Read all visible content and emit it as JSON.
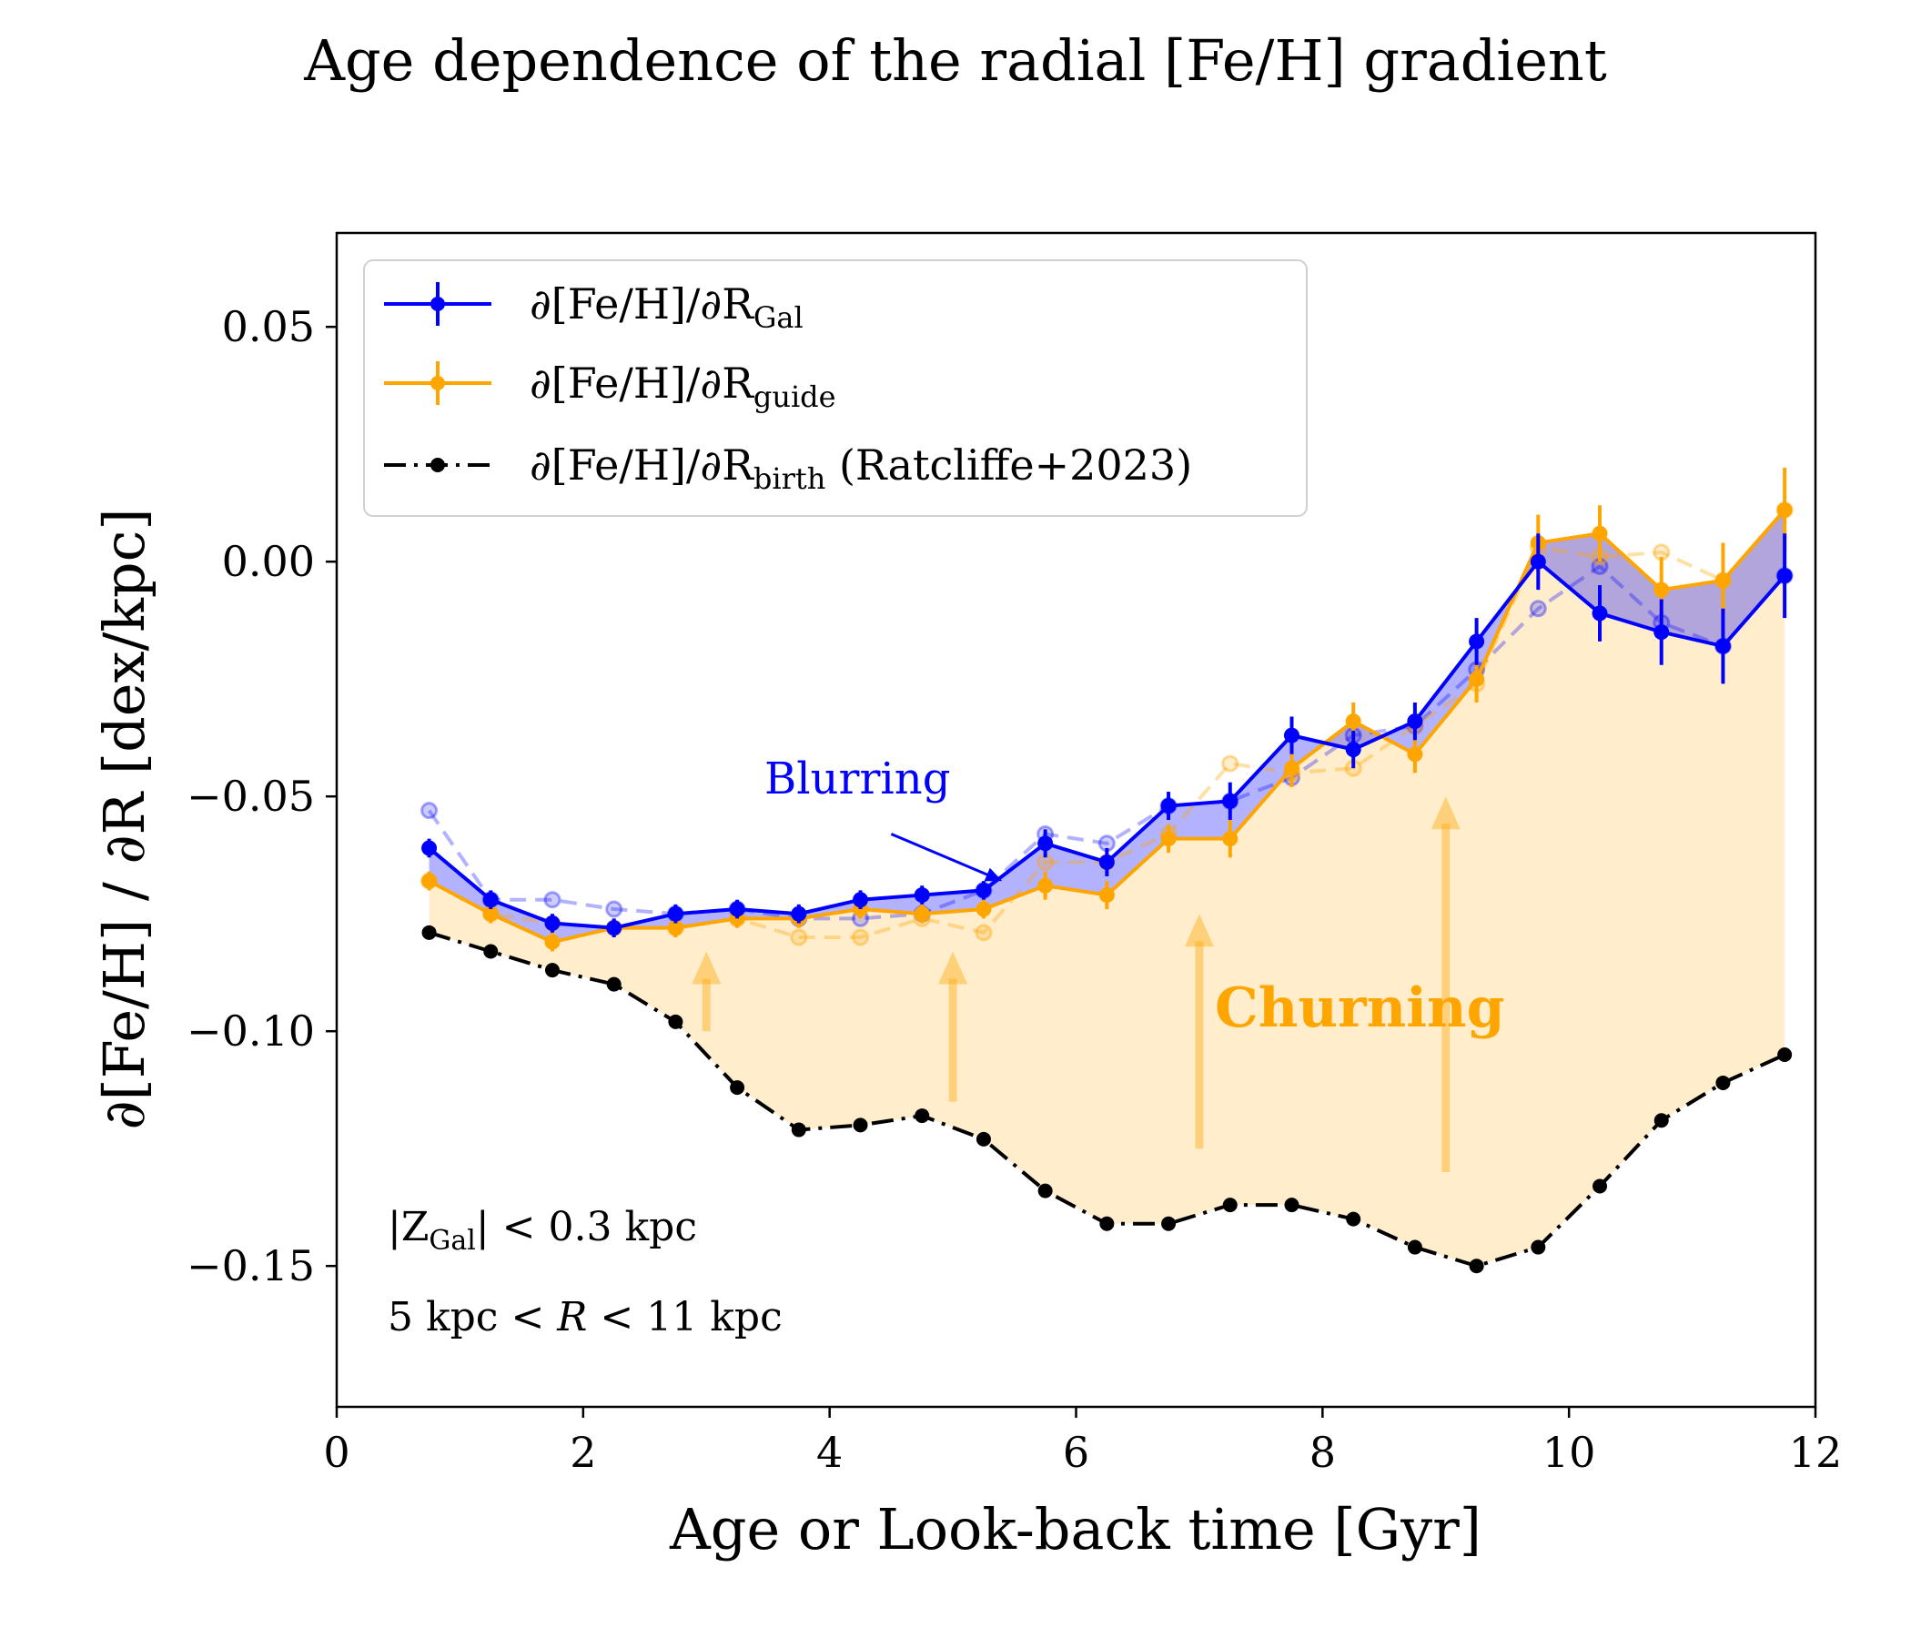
{
  "chart_data": {
    "type": "line",
    "title": "Age dependence of the radial [Fe/H] gradient",
    "xlabel": "Age or Look-back time [Gyr]",
    "ylabel": "∂[Fe/H] / ∂R [dex/kpc]",
    "xlim": [
      0,
      12
    ],
    "ylim": [
      -0.18,
      0.07
    ],
    "x_ticks": [
      0,
      2,
      4,
      6,
      8,
      10,
      12
    ],
    "x_tick_labels": [
      "0",
      "2",
      "4",
      "6",
      "8",
      "10",
      "12"
    ],
    "y_ticks": [
      0.05,
      0.0,
      -0.05,
      -0.1,
      -0.15
    ],
    "y_tick_labels": [
      "0.05",
      "0.00",
      "−0.05",
      "−0.10",
      "−0.15"
    ],
    "legend_position": "top-left",
    "x": [
      0.75,
      1.25,
      1.75,
      2.25,
      2.75,
      3.25,
      3.75,
      4.25,
      4.75,
      5.25,
      5.75,
      6.25,
      6.75,
      7.25,
      7.75,
      8.25,
      8.75,
      9.25,
      9.75,
      10.25,
      10.75,
      11.25,
      11.75
    ],
    "series": [
      {
        "name": "∂[Fe/H]/∂R_Gal",
        "legend_main": "∂[Fe/H]/∂R",
        "legend_sub": "Gal",
        "color": "#0000ff",
        "style": "solid",
        "values": [
          -0.061,
          -0.072,
          -0.077,
          -0.078,
          -0.075,
          -0.074,
          -0.075,
          -0.072,
          -0.071,
          -0.07,
          -0.06,
          -0.064,
          -0.052,
          -0.051,
          -0.037,
          -0.04,
          -0.034,
          -0.017,
          0.0,
          -0.011,
          -0.015,
          -0.018,
          -0.003
        ],
        "errors": [
          0.002,
          0.002,
          0.002,
          0.002,
          0.002,
          0.002,
          0.002,
          0.002,
          0.002,
          0.002,
          0.003,
          0.003,
          0.003,
          0.004,
          0.004,
          0.004,
          0.004,
          0.005,
          0.006,
          0.006,
          0.007,
          0.008,
          0.009
        ]
      },
      {
        "name": "∂[Fe/H]/∂R_guide",
        "legend_main": "∂[Fe/H]/∂R",
        "legend_sub": "guide",
        "color": "#ffa500",
        "style": "solid",
        "values": [
          -0.068,
          -0.075,
          -0.081,
          -0.078,
          -0.078,
          -0.076,
          -0.076,
          -0.074,
          -0.075,
          -0.074,
          -0.069,
          -0.071,
          -0.059,
          -0.059,
          -0.044,
          -0.034,
          -0.041,
          -0.025,
          0.004,
          0.006,
          -0.006,
          -0.004,
          0.011
        ]
      },
      {
        "name": "∂[Fe/H]/∂R_birth (Ratcliffe+2023)",
        "legend_main": "∂[Fe/H]/∂R",
        "legend_sub": "birth",
        "legend_suffix": " (Ratcliffe+2023)",
        "color": "#000000",
        "style": "dash-dot",
        "values": [
          -0.079,
          -0.083,
          -0.087,
          -0.09,
          -0.098,
          -0.112,
          -0.121,
          -0.12,
          -0.118,
          -0.123,
          -0.134,
          -0.141,
          -0.141,
          -0.137,
          -0.137,
          -0.14,
          -0.146,
          -0.15,
          -0.146,
          -0.133,
          -0.119,
          -0.111,
          -0.105
        ]
      },
      {
        "name": "Gal (faded, dashed)",
        "color": "#0000ff",
        "style": "dashed-faded",
        "values": [
          -0.053,
          -0.072,
          -0.072,
          -0.074,
          -0.075,
          -0.074,
          -0.076,
          -0.076,
          -0.075,
          -0.07,
          -0.058,
          -0.06,
          -0.052,
          -0.051,
          -0.046,
          -0.037,
          -0.035,
          -0.023,
          -0.01,
          -0.001,
          -0.013,
          -0.018,
          -0.003
        ]
      },
      {
        "name": "guide (faded, dashed)",
        "color": "#ffa500",
        "style": "dashed-faded",
        "values": [
          -0.068,
          -0.075,
          -0.077,
          -0.078,
          -0.078,
          -0.076,
          -0.08,
          -0.08,
          -0.076,
          -0.079,
          -0.064,
          -0.064,
          -0.058,
          -0.043,
          -0.045,
          -0.044,
          -0.035,
          -0.026,
          0.003,
          0.001,
          0.002,
          -0.004,
          0.011
        ]
      }
    ],
    "annotations": {
      "blurring": "Blurring",
      "churning": "Churning",
      "note_z": "|Z_Gal| < 0.3 kpc",
      "note_z_pre": "|Z",
      "note_z_sub": "Gal",
      "note_z_post": "| < 0.3 kpc",
      "note_r": "5 kpc < R < 11 kpc",
      "note_r_pre": "5 kpc < ",
      "note_r_var": "R",
      "note_r_post": " < 11 kpc"
    },
    "churning_arrows": [
      {
        "x": 3.0,
        "y_from": -0.1,
        "y_to": -0.083
      },
      {
        "x": 5.0,
        "y_from": -0.115,
        "y_to": -0.083
      },
      {
        "x": 7.0,
        "y_from": -0.125,
        "y_to": -0.075
      },
      {
        "x": 9.0,
        "y_from": -0.13,
        "y_to": -0.05
      }
    ],
    "blurring_arrow": {
      "x_from": 4.5,
      "y_from": -0.058,
      "x_to": 5.4,
      "y_to": -0.068
    }
  }
}
